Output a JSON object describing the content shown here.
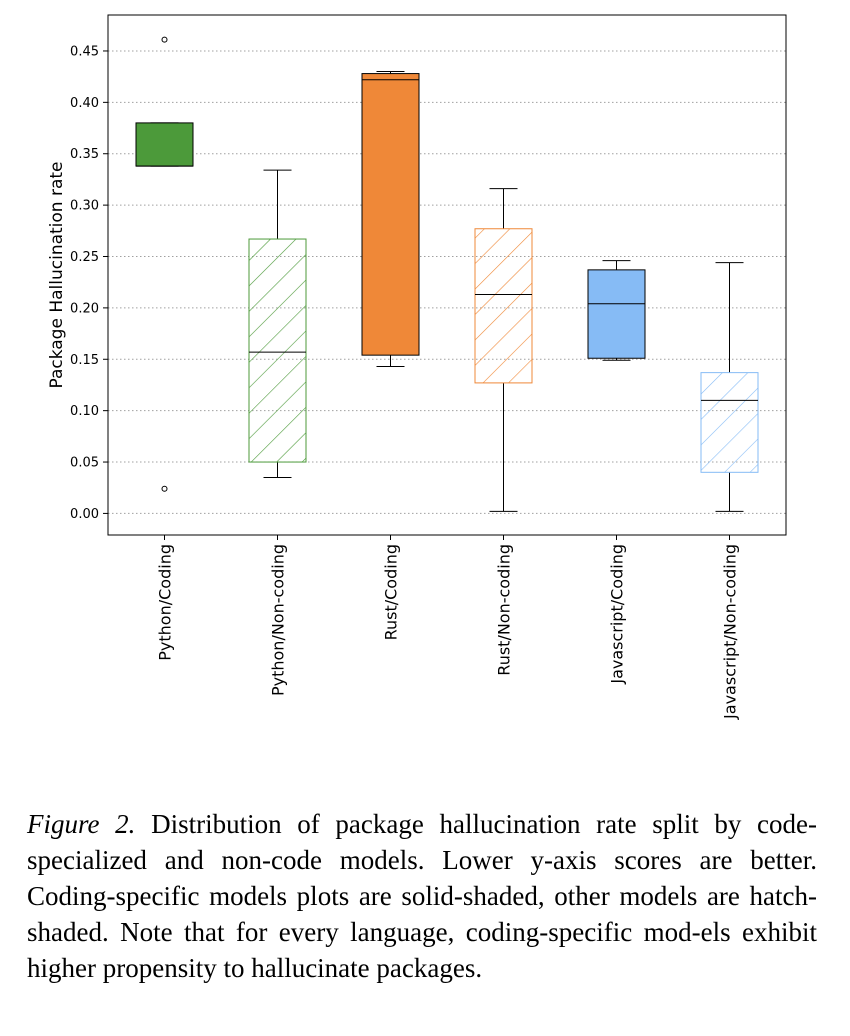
{
  "chart_data": {
    "type": "box",
    "ylabel": "Package Hallucination rate",
    "ylim": [
      -0.021,
      0.485
    ],
    "yticks": [
      "0.00",
      "0.05",
      "0.10",
      "0.15",
      "0.20",
      "0.25",
      "0.30",
      "0.35",
      "0.40",
      "0.45"
    ],
    "grid": "horizontal dotted",
    "categories": [
      "Python/Coding",
      "Python/Non-coding",
      "Rust/Coding",
      "Rust/Non-coding",
      "Javascript/Coding",
      "Javascript/Non-coding"
    ],
    "boxes": [
      {
        "whisker_low": 0.338,
        "q1": 0.338,
        "median": 0.338,
        "q3": 0.38,
        "whisker_high": 0.38,
        "outliers": [
          0.461,
          0.024
        ],
        "color": "#4c9a3a",
        "hatched": false
      },
      {
        "whisker_low": 0.035,
        "q1": 0.05,
        "median": 0.157,
        "q3": 0.267,
        "whisker_high": 0.334,
        "outliers": [],
        "color": "#4c9a3a",
        "hatched": true
      },
      {
        "whisker_low": 0.143,
        "q1": 0.154,
        "median": 0.422,
        "q3": 0.428,
        "whisker_high": 0.43,
        "outliers": [],
        "color": "#ef8838",
        "hatched": false
      },
      {
        "whisker_low": 0.002,
        "q1": 0.127,
        "median": 0.213,
        "q3": 0.277,
        "whisker_high": 0.316,
        "outliers": [],
        "color": "#ef8838",
        "hatched": true
      },
      {
        "whisker_low": 0.149,
        "q1": 0.151,
        "median": 0.204,
        "q3": 0.237,
        "whisker_high": 0.246,
        "outliers": [],
        "color": "#86bbf5",
        "hatched": false
      },
      {
        "whisker_low": 0.002,
        "q1": 0.04,
        "median": 0.11,
        "q3": 0.137,
        "whisker_high": 0.244,
        "outliers": [],
        "color": "#86bbf5",
        "hatched": true
      }
    ]
  },
  "caption": {
    "label": "Figure 2.",
    "text": "Distribution of package hallucination rate split by code-specialized and non-code models. Lower y-axis scores are better. Coding-specific models plots are solid-shaded, other models are hatch-shaded. Note that for every language, coding-specific mod-els exhibit higher propensity to hallucinate packages."
  }
}
